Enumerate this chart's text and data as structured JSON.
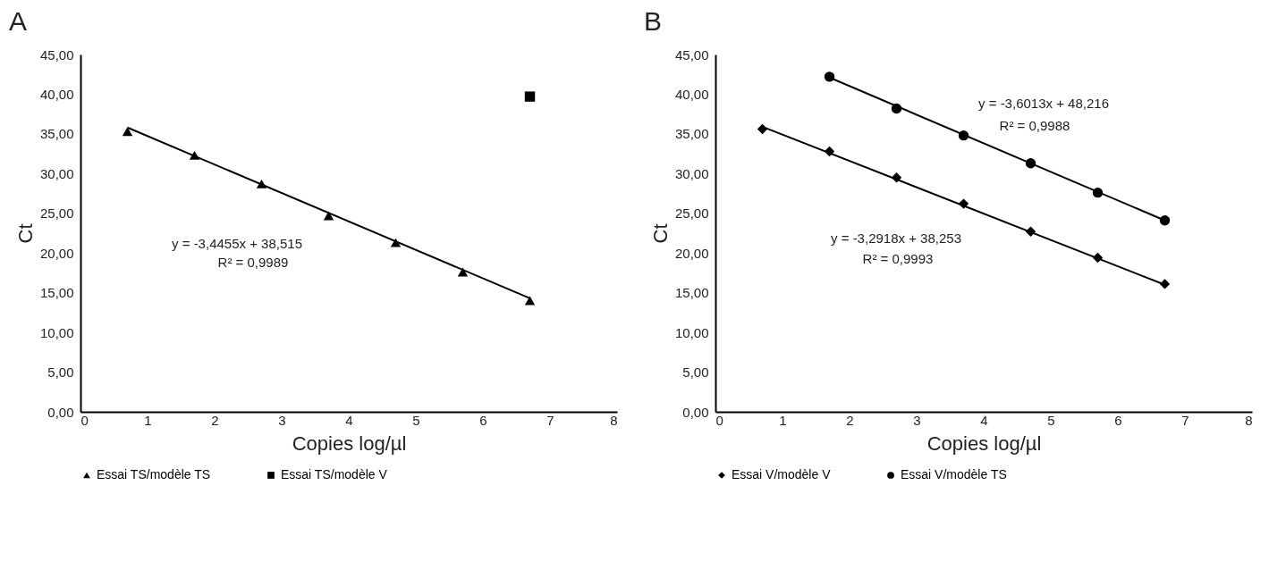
{
  "chart_data": [
    {
      "type": "scatter",
      "title": "A",
      "xlabel": "Copies log/µl",
      "ylabel": "Ct",
      "xlim": [
        0,
        8
      ],
      "xticks": [
        0,
        1,
        2,
        3,
        4,
        5,
        6,
        7,
        8
      ],
      "ylim": [
        0,
        45
      ],
      "yticks": [
        {
          "value": 0,
          "label": "0,00"
        },
        {
          "value": 5,
          "label": "5,00"
        },
        {
          "value": 10,
          "label": "10,00"
        },
        {
          "value": 15,
          "label": "15,00"
        },
        {
          "value": 20,
          "label": "20,00"
        },
        {
          "value": 25,
          "label": "25,00"
        },
        {
          "value": 30,
          "label": "30,00"
        },
        {
          "value": 35,
          "label": "35,00"
        },
        {
          "value": 40,
          "label": "40,00"
        },
        {
          "value": 45,
          "label": "45,00"
        }
      ],
      "grid": false,
      "legend": "bottom",
      "series": [
        {
          "name": "Essai TS/modèle TS",
          "color": "#000000",
          "marker": "triangle",
          "x": [
            0.7,
            1.7,
            2.7,
            3.7,
            4.7,
            5.7,
            6.7
          ],
          "values": [
            35.3,
            32.3,
            28.7,
            24.7,
            21.3,
            17.6,
            14.0
          ]
        },
        {
          "name": "Essai TS/modèle V",
          "color": "#000000",
          "marker": "square",
          "x": [
            6.7
          ],
          "values": [
            39.7
          ]
        },
        {
          "type": "line",
          "color": "#000000",
          "marker": "none",
          "x": [
            0.7,
            6.7
          ],
          "values": [
            35.8,
            14.3
          ]
        }
      ],
      "annotations": [
        "y = -3,4455x + 38,515",
        "R² = 0,9989"
      ]
    },
    {
      "type": "scatter",
      "title": "B",
      "xlabel": "Copies log/µl",
      "ylabel": "Ct",
      "xlim": [
        0,
        8
      ],
      "xticks": [
        0,
        1,
        2,
        3,
        4,
        5,
        6,
        7,
        8
      ],
      "ylim": [
        0,
        45
      ],
      "yticks": [
        {
          "value": 0,
          "label": "0,00"
        },
        {
          "value": 5,
          "label": "5,00"
        },
        {
          "value": 10,
          "label": "10,00"
        },
        {
          "value": 15,
          "label": "15,00"
        },
        {
          "value": 20,
          "label": "20,00"
        },
        {
          "value": 25,
          "label": "25,00"
        },
        {
          "value": 30,
          "label": "30,00"
        },
        {
          "value": 35,
          "label": "35,00"
        },
        {
          "value": 40,
          "label": "40,00"
        },
        {
          "value": 45,
          "label": "45,00"
        }
      ],
      "grid": false,
      "legend": "bottom",
      "series": [
        {
          "name": "Essai V/modèle V",
          "color": "#000000",
          "marker": "diamond",
          "x": [
            0.7,
            1.7,
            2.7,
            3.7,
            4.7,
            5.7,
            6.7
          ],
          "values": [
            35.6,
            32.8,
            29.5,
            26.2,
            22.7,
            19.4,
            16.1
          ]
        },
        {
          "name": "Essai V/modèle TS",
          "color": "#000000",
          "marker": "circle",
          "x": [
            1.7,
            2.7,
            3.7,
            4.7,
            5.7,
            6.7
          ],
          "values": [
            42.2,
            38.2,
            34.8,
            31.3,
            27.6,
            24.1
          ]
        },
        {
          "type": "line",
          "color": "#000000",
          "marker": "none",
          "x": [
            0.7,
            6.7
          ],
          "values": [
            35.9,
            16.0
          ]
        },
        {
          "type": "line",
          "color": "#000000",
          "marker": "none",
          "x": [
            1.7,
            6.7
          ],
          "values": [
            42.1,
            24.1
          ]
        }
      ],
      "annotations": [
        "y = -3,6013x + 48,216",
        "R² = 0,9988",
        "y = -3,2918x + 38,253",
        "R² = 0,9993"
      ]
    }
  ]
}
